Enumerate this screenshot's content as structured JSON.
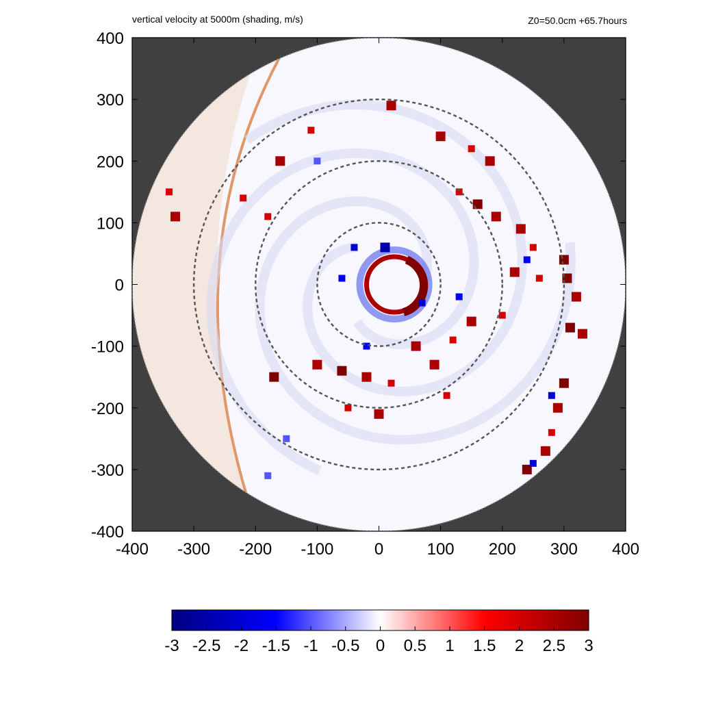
{
  "chart_data": {
    "type": "heatmap",
    "title": "vertical velocity at 5000m (shading, m/s)",
    "subtitle": "Z0=50.0cm  +65.7hours",
    "xlabel": "",
    "ylabel": "",
    "xlim": [
      -400,
      400
    ],
    "ylim": [
      -400,
      400
    ],
    "x_ticks": [
      -400,
      -300,
      -200,
      -100,
      0,
      100,
      200,
      300,
      400
    ],
    "y_ticks": [
      -400,
      -300,
      -200,
      -100,
      0,
      100,
      200,
      300,
      400
    ],
    "x_tick_labels": [
      "-400",
      "-300",
      "-200",
      "-100",
      "0",
      "100",
      "200",
      "300",
      "400"
    ],
    "y_tick_labels": [
      "-400",
      "-300",
      "-200",
      "-100",
      "0",
      "100",
      "200",
      "300",
      "400"
    ],
    "domain_radius": 400,
    "reference_circles_radius": [
      100,
      200,
      300
    ],
    "colorbar": {
      "range": [
        -3,
        3
      ],
      "ticks": [
        -3,
        -2.5,
        -2,
        -1.5,
        -1,
        -0.5,
        0,
        0.5,
        1,
        1.5,
        2,
        2.5,
        3
      ],
      "tick_labels": [
        "-3",
        "-2.5",
        "-2",
        "-1.5",
        "-1",
        "-0.5",
        "0",
        "0.5",
        "1",
        "1.5",
        "2",
        "2.5",
        "3"
      ],
      "colors": [
        "#000080",
        "#0000ff",
        "#ffffff",
        "#ff0000",
        "#800000"
      ]
    },
    "background_color": "#404040",
    "eye_ring": {
      "center": [
        25,
        0
      ],
      "radius": 45,
      "value": 2.5
    },
    "features": [
      {
        "x": 300,
        "y": 40,
        "value": 3
      },
      {
        "x": 305,
        "y": 10,
        "value": 3
      },
      {
        "x": 320,
        "y": -20,
        "value": 2.5
      },
      {
        "x": 310,
        "y": -70,
        "value": 3
      },
      {
        "x": 330,
        "y": -80,
        "value": 2.5
      },
      {
        "x": 300,
        "y": -160,
        "value": 3
      },
      {
        "x": 290,
        "y": -200,
        "value": 2.5
      },
      {
        "x": 280,
        "y": -240,
        "value": 2
      },
      {
        "x": 270,
        "y": -270,
        "value": 2.5
      },
      {
        "x": 240,
        "y": -300,
        "value": 3
      },
      {
        "x": 160,
        "y": 130,
        "value": 3
      },
      {
        "x": 190,
        "y": 110,
        "value": 2.5
      },
      {
        "x": 230,
        "y": 90,
        "value": 2.5
      },
      {
        "x": 250,
        "y": 60,
        "value": 2
      },
      {
        "x": 130,
        "y": 150,
        "value": 2
      },
      {
        "x": 180,
        "y": 200,
        "value": 2.5
      },
      {
        "x": 100,
        "y": 240,
        "value": 2.5
      },
      {
        "x": 150,
        "y": 220,
        "value": 2
      },
      {
        "x": 20,
        "y": 290,
        "value": 2.5
      },
      {
        "x": -110,
        "y": 250,
        "value": 2
      },
      {
        "x": -160,
        "y": 200,
        "value": 2.5
      },
      {
        "x": -180,
        "y": 110,
        "value": 2
      },
      {
        "x": -220,
        "y": 140,
        "value": 2
      },
      {
        "x": -170,
        "y": -150,
        "value": 3
      },
      {
        "x": -100,
        "y": -130,
        "value": 2.5
      },
      {
        "x": -60,
        "y": -140,
        "value": 3
      },
      {
        "x": -20,
        "y": -150,
        "value": 2.5
      },
      {
        "x": 20,
        "y": -160,
        "value": 2
      },
      {
        "x": 60,
        "y": -100,
        "value": 2.5
      },
      {
        "x": 90,
        "y": -130,
        "value": 2.5
      },
      {
        "x": 120,
        "y": -90,
        "value": 2
      },
      {
        "x": 150,
        "y": -60,
        "value": 2.5
      },
      {
        "x": 200,
        "y": -50,
        "value": 2
      },
      {
        "x": -50,
        "y": -200,
        "value": 2
      },
      {
        "x": 0,
        "y": -210,
        "value": 2.5
      },
      {
        "x": 110,
        "y": -180,
        "value": 2
      },
      {
        "x": -330,
        "y": 110,
        "value": 2.5
      },
      {
        "x": -340,
        "y": 150,
        "value": 2
      },
      {
        "x": 220,
        "y": 20,
        "value": 2.5
      },
      {
        "x": 260,
        "y": 10,
        "value": 2
      },
      {
        "x": -40,
        "y": 60,
        "value": -2
      },
      {
        "x": 10,
        "y": 60,
        "value": -2.5
      },
      {
        "x": -60,
        "y": 10,
        "value": -1.5
      },
      {
        "x": 70,
        "y": -30,
        "value": -2
      },
      {
        "x": -20,
        "y": -100,
        "value": -1.5
      },
      {
        "x": 240,
        "y": 40,
        "value": -1.5
      },
      {
        "x": 280,
        "y": -180,
        "value": -2
      },
      {
        "x": 250,
        "y": -290,
        "value": -2
      },
      {
        "x": -100,
        "y": 200,
        "value": -1
      },
      {
        "x": -150,
        "y": -250,
        "value": -1
      },
      {
        "x": -180,
        "y": -310,
        "value": -1
      },
      {
        "x": 130,
        "y": -20,
        "value": -1.5
      }
    ]
  }
}
